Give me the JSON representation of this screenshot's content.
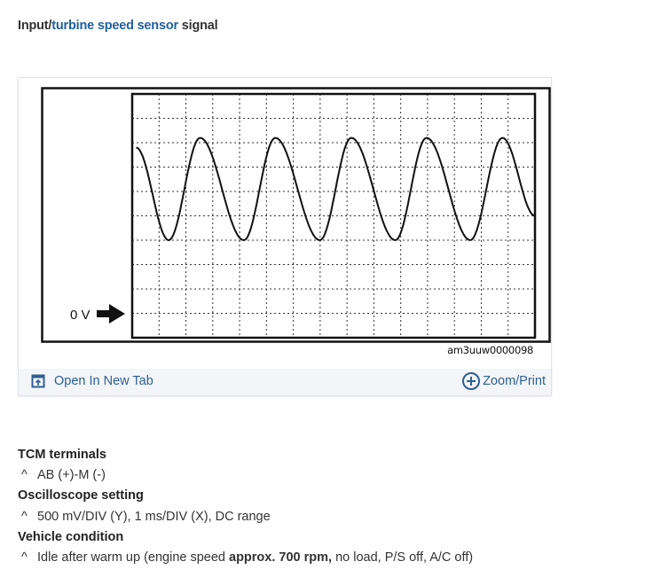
{
  "title": {
    "prefix": "Input/",
    "link": "turbine speed sensor",
    "suffix": " signal"
  },
  "figure": {
    "id_label": "am3uuw0000098",
    "zero_label": "0 V",
    "open_tab_label": "Open In New Tab",
    "zoom_print_label": "Zoom/Print",
    "icons": [
      "open-new-tab-icon",
      "plus-circle-icon",
      "arrow-right-icon"
    ]
  },
  "chart_data": {
    "type": "line",
    "title": "",
    "grid": true,
    "x_divisions": 15,
    "y_divisions": 10,
    "x_unit_per_div_ms": 1,
    "y_unit_per_div_V": 0.5,
    "zero_level_div_from_bottom": 1,
    "xlim_ms": [
      0,
      15
    ],
    "ylim_V": [
      -0.5,
      4.5
    ],
    "series": [
      {
        "points_ms_V": [
          [
            0.15,
            3.4
          ],
          [
            1.36,
            1.5
          ],
          [
            2.53,
            3.6
          ],
          [
            4.16,
            1.5
          ],
          [
            5.33,
            3.6
          ],
          [
            6.99,
            1.5
          ],
          [
            8.16,
            3.6
          ],
          [
            9.8,
            1.5
          ],
          [
            10.96,
            3.6
          ],
          [
            12.59,
            1.5
          ],
          [
            13.79,
            3.6
          ],
          [
            15,
            2.0
          ]
        ]
      }
    ]
  },
  "sections": [
    {
      "heading": "TCM terminals",
      "caret": "^",
      "text": [
        "AB (+)-M (-)"
      ]
    },
    {
      "heading": "Oscilloscope setting",
      "caret": "^",
      "text": [
        "500 mV/DIV (Y), 1 ms/DIV (X), DC range"
      ]
    },
    {
      "heading": "Vehicle condition",
      "caret": "^",
      "text": [
        "Idle after warm up (engine speed ",
        "approx. 700 rpm,",
        " no load, P/S off, A/C off)"
      ]
    }
  ]
}
